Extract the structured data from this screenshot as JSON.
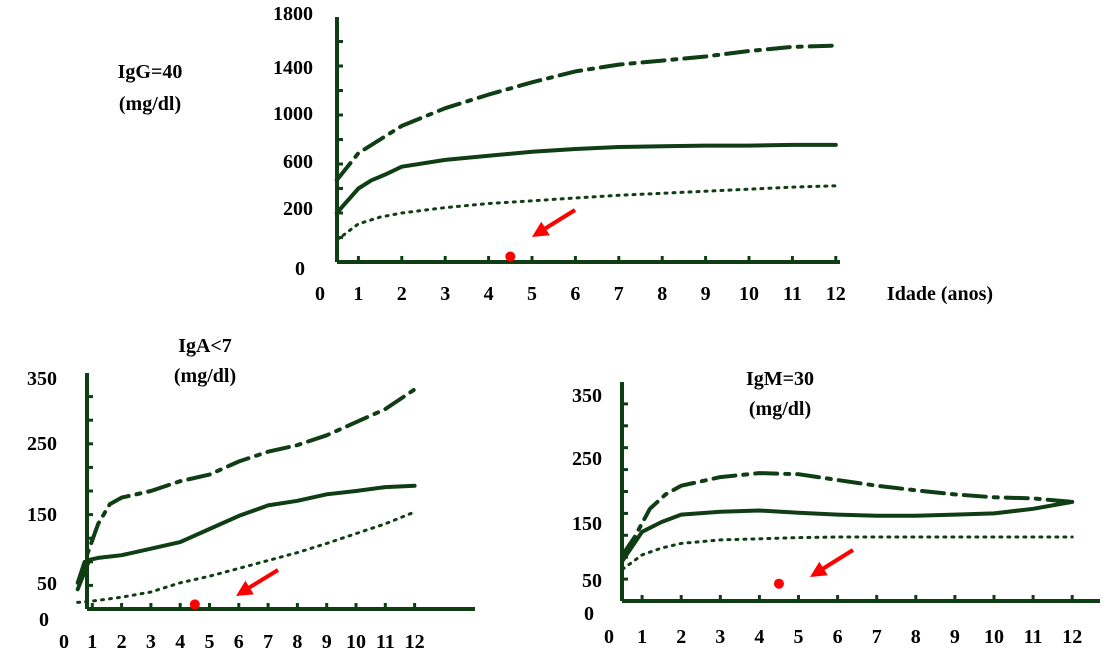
{
  "colors": {
    "curve": "#0f3d14",
    "patient": "#ff0000"
  },
  "chart_data": [
    {
      "id": "igg",
      "type": "line",
      "title_lines": [
        "IgG=40",
        "(mg/dl)"
      ],
      "xlabel": "Idade (anos)",
      "xlim": [
        0,
        12.5
      ],
      "ylim": [
        0,
        1800
      ],
      "x_ticks": [
        "0",
        "1",
        "2",
        "3",
        "4",
        "5",
        "6",
        "7",
        "8",
        "9",
        "10",
        "11",
        "12"
      ],
      "y_ticks": [
        "0",
        "200",
        "600",
        "1000",
        "1400",
        "1800"
      ],
      "series": [
        {
          "style": "dashdot",
          "points": [
            [
              0.5,
              600
            ],
            [
              1,
              800
            ],
            [
              2,
              1000
            ],
            [
              3,
              1130
            ],
            [
              4,
              1230
            ],
            [
              5,
              1320
            ],
            [
              6,
              1400
            ],
            [
              7,
              1450
            ],
            [
              8,
              1480
            ],
            [
              9,
              1510
            ],
            [
              10,
              1550
            ],
            [
              11,
              1580
            ],
            [
              12,
              1590
            ]
          ]
        },
        {
          "style": "solid",
          "points": [
            [
              0.5,
              360
            ],
            [
              1,
              540
            ],
            [
              1.3,
              600
            ],
            [
              1.6,
              640
            ],
            [
              2,
              700
            ],
            [
              3,
              750
            ],
            [
              4,
              780
            ],
            [
              5,
              810
            ],
            [
              6,
              830
            ],
            [
              7,
              845
            ],
            [
              8,
              850
            ],
            [
              9,
              855
            ],
            [
              10,
              855
            ],
            [
              11,
              860
            ],
            [
              12,
              860
            ]
          ]
        },
        {
          "style": "dotted",
          "points": [
            [
              0.5,
              160
            ],
            [
              1,
              280
            ],
            [
              1.5,
              330
            ],
            [
              2,
              360
            ],
            [
              3,
              400
            ],
            [
              4,
              430
            ],
            [
              5,
              450
            ],
            [
              6,
              470
            ],
            [
              7,
              490
            ],
            [
              8,
              505
            ],
            [
              9,
              520
            ],
            [
              10,
              535
            ],
            [
              11,
              550
            ],
            [
              12,
              560
            ]
          ]
        }
      ],
      "patient_point": {
        "x": 4.5,
        "y": 40
      }
    },
    {
      "id": "iga",
      "type": "line",
      "title_lines": [
        "IgA<7",
        "(mg/dl)"
      ],
      "xlim": [
        0,
        12.8
      ],
      "ylim": [
        0,
        360
      ],
      "x_ticks": [
        "0",
        "1",
        "2",
        "3",
        "4",
        "5",
        "6",
        "7",
        "8",
        "9",
        "10",
        "11",
        "12"
      ],
      "y_ticks": [
        "0",
        "50",
        "150",
        "250",
        "350"
      ],
      "series": [
        {
          "style": "dashdot",
          "points": [
            [
              0.5,
              40
            ],
            [
              0.8,
              80
            ],
            [
              1.2,
              130
            ],
            [
              1.6,
              160
            ],
            [
              2,
              170
            ],
            [
              3,
              180
            ],
            [
              4,
              195
            ],
            [
              5,
              205
            ],
            [
              6,
              225
            ],
            [
              7,
              240
            ],
            [
              8,
              250
            ],
            [
              9,
              265
            ],
            [
              10,
              285
            ],
            [
              11,
              305
            ],
            [
              12,
              335
            ]
          ]
        },
        {
          "style": "solid",
          "points": [
            [
              0.5,
              30
            ],
            [
              0.9,
              75
            ],
            [
              1.2,
              78
            ],
            [
              2,
              82
            ],
            [
              3,
              92
            ],
            [
              4,
              102
            ],
            [
              5,
              122
            ],
            [
              6,
              142
            ],
            [
              7,
              158
            ],
            [
              8,
              165
            ],
            [
              9,
              175
            ],
            [
              10,
              180
            ],
            [
              11,
              186
            ],
            [
              12,
              188
            ]
          ]
        },
        {
          "style": "dotted",
          "points": [
            [
              0.5,
              10
            ],
            [
              1,
              12
            ],
            [
              2,
              18
            ],
            [
              3,
              26
            ],
            [
              4,
              40
            ],
            [
              5,
              50
            ],
            [
              6,
              62
            ],
            [
              7,
              74
            ],
            [
              8,
              86
            ],
            [
              9,
              100
            ],
            [
              10,
              115
            ],
            [
              11,
              130
            ],
            [
              12,
              148
            ]
          ]
        }
      ],
      "patient_point": {
        "x": 4.5,
        "y": 7
      }
    },
    {
      "id": "igm",
      "type": "line",
      "title_lines": [
        "IgM=30",
        "(mg/dl)"
      ],
      "xlim": [
        0,
        12.8
      ],
      "ylim": [
        0,
        380
      ],
      "x_ticks": [
        "0",
        "1",
        "2",
        "3",
        "4",
        "5",
        "6",
        "7",
        "8",
        "9",
        "10",
        "11",
        "12"
      ],
      "y_ticks": [
        "0",
        "50",
        "150",
        "250",
        "350"
      ],
      "series": [
        {
          "style": "dashdot",
          "points": [
            [
              0.5,
              80
            ],
            [
              0.8,
              110
            ],
            [
              1.2,
              160
            ],
            [
              1.6,
              185
            ],
            [
              2,
              200
            ],
            [
              3,
              215
            ],
            [
              4,
              222
            ],
            [
              5,
              220
            ],
            [
              6,
              210
            ],
            [
              7,
              200
            ],
            [
              8,
              192
            ],
            [
              9,
              185
            ],
            [
              10,
              180
            ],
            [
              11,
              178
            ],
            [
              12,
              172
            ]
          ]
        },
        {
          "style": "solid",
          "points": [
            [
              0.5,
              70
            ],
            [
              1,
              120
            ],
            [
              1.5,
              137
            ],
            [
              2,
              150
            ],
            [
              3,
              155
            ],
            [
              4,
              157
            ],
            [
              5,
              153
            ],
            [
              6,
              150
            ],
            [
              7,
              148
            ],
            [
              8,
              148
            ],
            [
              9,
              150
            ],
            [
              10,
              152
            ],
            [
              11,
              160
            ],
            [
              12,
              172
            ]
          ]
        },
        {
          "style": "dotted",
          "points": [
            [
              0.5,
              55
            ],
            [
              1,
              80
            ],
            [
              1.5,
              92
            ],
            [
              2,
              100
            ],
            [
              3,
              106
            ],
            [
              4,
              108
            ],
            [
              5,
              110
            ],
            [
              6,
              111
            ],
            [
              7,
              111
            ],
            [
              8,
              111
            ],
            [
              9,
              111
            ],
            [
              10,
              111
            ],
            [
              11,
              111
            ],
            [
              12,
              111
            ]
          ]
        }
      ],
      "patient_point": {
        "x": 4.5,
        "y": 30
      }
    }
  ]
}
